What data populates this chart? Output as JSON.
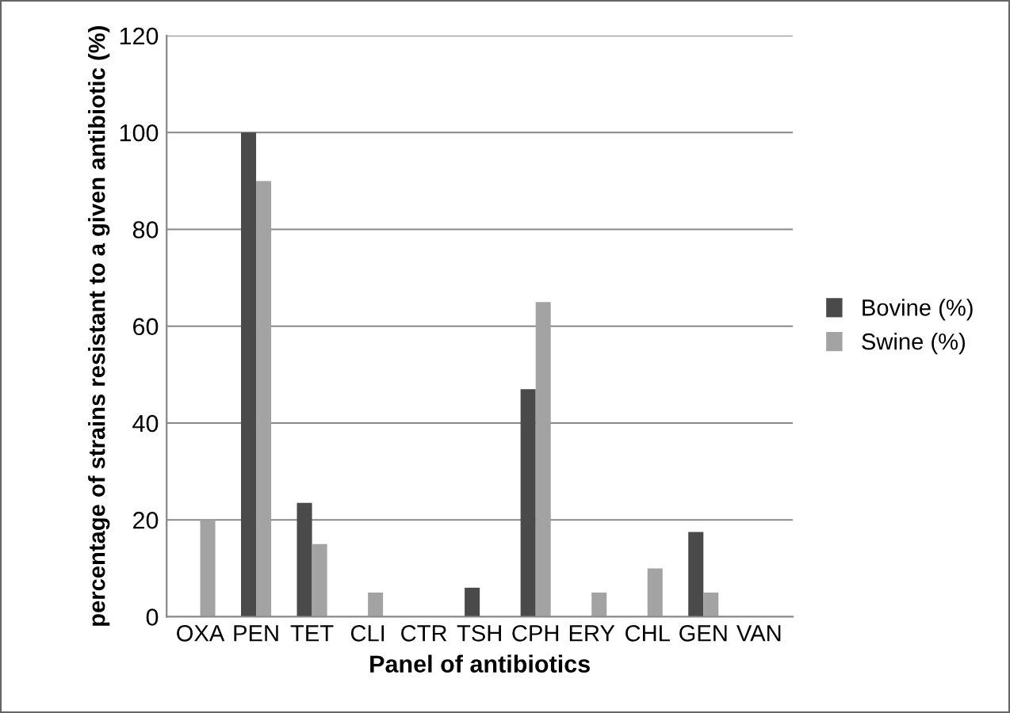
{
  "chart_data": {
    "type": "bar",
    "xlabel": "Panel of antibiotics",
    "ylabel": "percentage of strains resistant to a given antibiotic (%)",
    "categories": [
      "OXA",
      "PEN",
      "TET",
      "CLI",
      "CTR",
      "TSH",
      "CPH",
      "ERY",
      "CHL",
      "GEN",
      "VAN"
    ],
    "series": [
      {
        "name": "Bovine (%)",
        "color": "#4a4a4a",
        "values": [
          0,
          100,
          23.5,
          0,
          0,
          6,
          47,
          0,
          0,
          17.5,
          0
        ]
      },
      {
        "name": "Swine (%)",
        "color": "#a3a3a3",
        "values": [
          20,
          90,
          15,
          5,
          0,
          0,
          65,
          5,
          10,
          5,
          0
        ]
      }
    ],
    "ylim": [
      0,
      120
    ],
    "yticks": [
      0,
      20,
      40,
      60,
      80,
      100,
      120
    ],
    "grid": "y",
    "legend": "right"
  }
}
